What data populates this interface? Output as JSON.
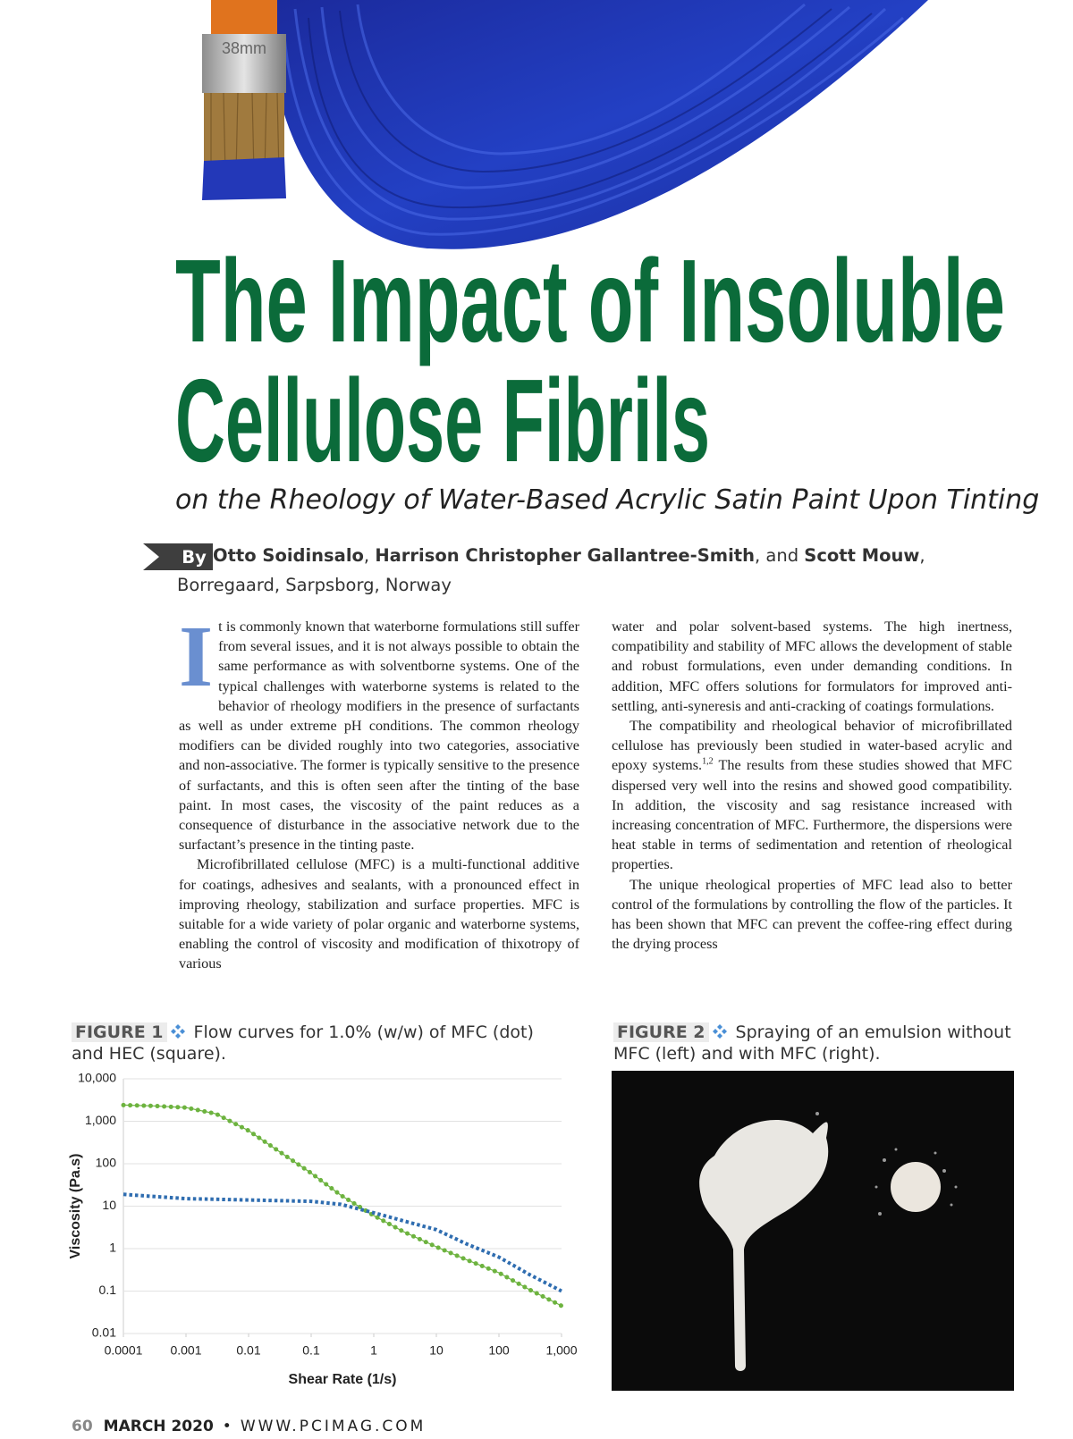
{
  "header": {
    "image_text": "38mm",
    "title": [
      "The Impact of Insoluble",
      "Cellulose Fibrils"
    ],
    "subtitle": "on the Rheology of Water-Based Acrylic Satin Paint Upon Tinting",
    "byline": {
      "label": "By",
      "segments": [
        {
          "text": "Otto Soidinsalo",
          "bold": true
        },
        {
          "text": ", "
        },
        {
          "text": "Harrison Christopher Gallantree-Smith",
          "bold": true
        },
        {
          "text": ", and "
        },
        {
          "text": "Scott Mouw",
          "bold": true
        },
        {
          "text": ", Borregaard, Sarpsborg, Norway"
        }
      ]
    }
  },
  "body": {
    "dropcap": "I",
    "columns": [
      {
        "paragraphs": [
          {
            "indent": false,
            "segments": [
              {
                "text": "t is commonly known that waterborne formulations still suffer from several issues, and it is not always possible to obtain the same performance as with solventborne systems. One of the typical challenges with waterborne systems is related to the behavior of rheology modifiers in the presence of surfactants as well as under extreme pH conditions. The common rheology modifiers can be divided roughly into two categories, associative and non-associative. The former is typically sensitive to the presence of surfactants, and this is often seen after the tinting of the base paint. In most cases, the viscosity of the paint reduces as a consequence of disturbance in the associative network due to the surfactant’s presence in the tinting paste."
              }
            ]
          },
          {
            "indent": true,
            "segments": [
              {
                "text": "Microfibrillated cellulose (MFC) is a multi-functional additive for coatings, adhesives and sealants, with a pronounced effect in improving rheology, stabilization and surface properties. MFC is suitable for a wide variety of polar organic and waterborne systems, enabling the control of viscosity and modification of thixotropy of various"
              }
            ]
          }
        ]
      },
      {
        "paragraphs": [
          {
            "indent": false,
            "segments": [
              {
                "text": "water and polar solvent-based systems. The high inertness, compatibility and stability of MFC allows the development of stable and robust formulations, even under demanding conditions. In addition, MFC offers solutions for formulators for improved anti-settling, anti-syneresis and anti-cracking of coatings formulations."
              }
            ]
          },
          {
            "indent": true,
            "segments": [
              {
                "text": "The compatibility and rheological behavior of microfibrillated cellulose has previously been studied in water-based acrylic and epoxy systems."
              },
              {
                "sup": "1,2"
              },
              {
                "text": " The results from these studies showed that MFC dispersed very well into the resins and showed good compatibility. In addition, the viscosity and sag resistance increased with increasing concentration of MFC. Furthermore, the dispersions were heat stable in terms of sedimentation and retention of rheological properties."
              }
            ]
          },
          {
            "indent": true,
            "segments": [
              {
                "text": "The unique rheological properties of MFC lead also to better control of the formulations by controlling the flow of the particles. It has been shown that MFC can prevent the coffee-ring effect during the drying process"
              }
            ]
          }
        ]
      }
    ]
  },
  "figure1": {
    "label": "FIGURE 1",
    "caption": "Flow curves for 1.0% (w/w) of MFC (dot) and HEC (square)."
  },
  "figure2": {
    "label": "FIGURE 2",
    "caption": "Spraying of an emulsion without MFC (left) and with MFC (right)."
  },
  "chart_data": {
    "type": "line",
    "x_label": "Shear Rate (1/s)",
    "y_label": "Viscosity (Pa.s)",
    "x_scale": "log",
    "y_scale": "log",
    "grid": true,
    "x": [
      0.0001,
      0.0003,
      0.001,
      0.003,
      0.01,
      0.03,
      0.1,
      0.3,
      1,
      3,
      10,
      30,
      100,
      300,
      1000
    ],
    "series": [
      {
        "name": "MFC",
        "color": "#6db33f",
        "marker": "dot",
        "values": [
          2400,
          2300,
          2100,
          1500,
          600,
          200,
          60,
          18,
          6,
          2.5,
          1.1,
          0.55,
          0.27,
          0.11,
          0.045
        ]
      },
      {
        "name": "HEC",
        "color": "#2f6db0",
        "marker": "square",
        "values": [
          19,
          17,
          15,
          14.5,
          14,
          13.5,
          13,
          11,
          7,
          4.5,
          2.8,
          1.3,
          0.63,
          0.25,
          0.1
        ]
      }
    ],
    "xlim": [
      0.0001,
      1000
    ],
    "ylim": [
      0.01,
      10000
    ],
    "xticks": [
      0.0001,
      0.001,
      0.01,
      0.1,
      1,
      10,
      100,
      {
        "value": 1000,
        "label": "1,000"
      }
    ],
    "yticks": [
      0.01,
      0.1,
      1,
      10,
      100,
      {
        "value": 1000,
        "label": "1,000"
      },
      {
        "value": 10000,
        "label": "10,000"
      }
    ]
  },
  "footer": {
    "page": "60",
    "issue": "MARCH 2020",
    "separator": "•",
    "url": "WWW.PCIMAG.COM"
  }
}
